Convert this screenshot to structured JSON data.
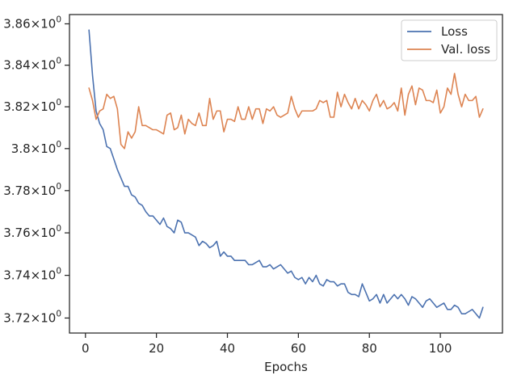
{
  "chart_data": {
    "type": "line",
    "title": "",
    "xlabel": "Epochs",
    "ylabel": "",
    "xlim": [
      -4.5,
      117.5
    ],
    "ylim": [
      3.713,
      3.8645
    ],
    "y_scale": "log",
    "grid": false,
    "legend_position": "top-right",
    "x_ticks": [
      0,
      20,
      40,
      60,
      80,
      100
    ],
    "x_tick_labels": [
      "0",
      "20",
      "40",
      "60",
      "80",
      "100"
    ],
    "y_ticks": [
      3.72,
      3.74,
      3.76,
      3.78,
      3.8,
      3.82,
      3.84,
      3.86
    ],
    "y_tick_mantissas": [
      "3.72",
      "3.74",
      "3.76",
      "3.78",
      "3.8",
      "3.82",
      "3.84",
      "3.86"
    ],
    "y_tick_base": "10",
    "y_tick_exponent": "0",
    "series": [
      {
        "name": "Loss",
        "color": "#4c72b0",
        "x": [
          1,
          2,
          3,
          4,
          5,
          6,
          7,
          8,
          9,
          10,
          11,
          12,
          13,
          14,
          15,
          16,
          17,
          18,
          19,
          20,
          21,
          22,
          23,
          24,
          25,
          26,
          27,
          28,
          29,
          30,
          31,
          32,
          33,
          34,
          35,
          36,
          37,
          38,
          39,
          40,
          41,
          42,
          43,
          44,
          45,
          46,
          47,
          48,
          49,
          50,
          51,
          52,
          53,
          54,
          55,
          56,
          57,
          58,
          59,
          60,
          61,
          62,
          63,
          64,
          65,
          66,
          67,
          68,
          69,
          70,
          71,
          72,
          73,
          74,
          75,
          76,
          77,
          78,
          79,
          80,
          81,
          82,
          83,
          84,
          85,
          86,
          87,
          88,
          89,
          90,
          91,
          92,
          93,
          94,
          95,
          96,
          97,
          98,
          99,
          100,
          101,
          102,
          103,
          104,
          105,
          106,
          107,
          108,
          109,
          110,
          111,
          112
        ],
        "values": [
          3.857,
          3.835,
          3.818,
          3.812,
          3.809,
          3.801,
          3.8,
          3.795,
          3.79,
          3.786,
          3.782,
          3.782,
          3.778,
          3.777,
          3.774,
          3.773,
          3.77,
          3.768,
          3.768,
          3.766,
          3.764,
          3.767,
          3.763,
          3.762,
          3.76,
          3.766,
          3.765,
          3.76,
          3.76,
          3.759,
          3.758,
          3.754,
          3.756,
          3.755,
          3.753,
          3.754,
          3.756,
          3.749,
          3.751,
          3.749,
          3.749,
          3.747,
          3.747,
          3.747,
          3.747,
          3.745,
          3.745,
          3.746,
          3.747,
          3.744,
          3.744,
          3.745,
          3.743,
          3.744,
          3.745,
          3.743,
          3.741,
          3.742,
          3.739,
          3.738,
          3.739,
          3.736,
          3.739,
          3.737,
          3.74,
          3.736,
          3.735,
          3.738,
          3.737,
          3.737,
          3.735,
          3.736,
          3.736,
          3.732,
          3.731,
          3.731,
          3.73,
          3.736,
          3.732,
          3.728,
          3.729,
          3.731,
          3.727,
          3.731,
          3.727,
          3.729,
          3.731,
          3.729,
          3.731,
          3.729,
          3.726,
          3.73,
          3.729,
          3.727,
          3.725,
          3.728,
          3.729,
          3.727,
          3.725,
          3.726,
          3.727,
          3.724,
          3.724,
          3.726,
          3.725,
          3.722,
          3.722,
          3.723,
          3.724,
          3.722,
          3.72,
          3.725
        ]
      },
      {
        "name": "Val. loss",
        "color": "#dd8452",
        "x": [
          1,
          2,
          3,
          4,
          5,
          6,
          7,
          8,
          9,
          10,
          11,
          12,
          13,
          14,
          15,
          16,
          17,
          18,
          19,
          20,
          21,
          22,
          23,
          24,
          25,
          26,
          27,
          28,
          29,
          30,
          31,
          32,
          33,
          34,
          35,
          36,
          37,
          38,
          39,
          40,
          41,
          42,
          43,
          44,
          45,
          46,
          47,
          48,
          49,
          50,
          51,
          52,
          53,
          54,
          55,
          56,
          57,
          58,
          59,
          60,
          61,
          62,
          63,
          64,
          65,
          66,
          67,
          68,
          69,
          70,
          71,
          72,
          73,
          74,
          75,
          76,
          77,
          78,
          79,
          80,
          81,
          82,
          83,
          84,
          85,
          86,
          87,
          88,
          89,
          90,
          91,
          92,
          93,
          94,
          95,
          96,
          97,
          98,
          99,
          100,
          101,
          102,
          103,
          104,
          105,
          106,
          107,
          108,
          109,
          110,
          111,
          112
        ],
        "values": [
          3.829,
          3.823,
          3.814,
          3.818,
          3.819,
          3.826,
          3.824,
          3.825,
          3.819,
          3.802,
          3.8,
          3.808,
          3.805,
          3.808,
          3.82,
          3.811,
          3.811,
          3.81,
          3.809,
          3.809,
          3.808,
          3.807,
          3.816,
          3.817,
          3.809,
          3.81,
          3.816,
          3.807,
          3.814,
          3.812,
          3.811,
          3.817,
          3.811,
          3.811,
          3.824,
          3.814,
          3.818,
          3.818,
          3.808,
          3.814,
          3.814,
          3.813,
          3.82,
          3.814,
          3.814,
          3.82,
          3.814,
          3.819,
          3.819,
          3.812,
          3.819,
          3.818,
          3.82,
          3.816,
          3.815,
          3.816,
          3.817,
          3.825,
          3.819,
          3.815,
          3.818,
          3.818,
          3.818,
          3.818,
          3.819,
          3.823,
          3.822,
          3.823,
          3.815,
          3.815,
          3.827,
          3.82,
          3.826,
          3.822,
          3.819,
          3.824,
          3.819,
          3.823,
          3.821,
          3.818,
          3.823,
          3.826,
          3.82,
          3.823,
          3.819,
          3.82,
          3.822,
          3.818,
          3.829,
          3.816,
          3.826,
          3.83,
          3.821,
          3.829,
          3.828,
          3.823,
          3.823,
          3.822,
          3.828,
          3.817,
          3.82,
          3.829,
          3.826,
          3.836,
          3.826,
          3.82,
          3.826,
          3.823,
          3.823,
          3.825,
          3.815,
          3.819
        ]
      }
    ]
  }
}
